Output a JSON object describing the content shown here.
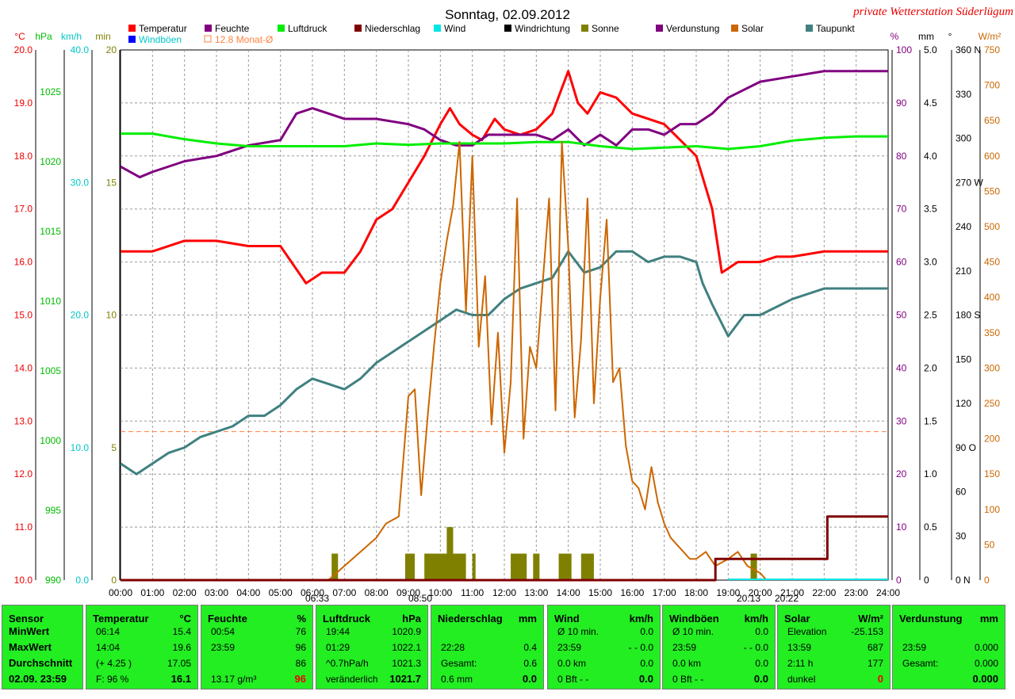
{
  "title": "Sonntag, 02.09.2012",
  "station": "private Wetterstation Süderlügum",
  "legend": [
    {
      "label": "Temperatur",
      "color": "#ff0000"
    },
    {
      "label": "Feuchte",
      "color": "#800080"
    },
    {
      "label": "Luftdruck",
      "color": "#00ee00"
    },
    {
      "label": "Niederschlag",
      "color": "#800000"
    },
    {
      "label": "Wind",
      "color": "#00e5e5"
    },
    {
      "label": "Windrichtung",
      "color": "#000000"
    },
    {
      "label": "Sonne",
      "color": "#808000"
    },
    {
      "label": "Verdunstung",
      "color": "#800080"
    },
    {
      "label": "Solar",
      "color": "#cc6600"
    },
    {
      "label": "Taupunkt",
      "color": "#408080"
    },
    {
      "label": "Windböen",
      "color": "#0000ff"
    },
    {
      "label": "12.8 Monat-Ø",
      "color": "#ff8040"
    }
  ],
  "axis_units": {
    "temp": "°C",
    "pressure": "hPa",
    "wind": "km/h",
    "sun": "min",
    "humidity": "%",
    "rain": "mm",
    "direction": "°",
    "solar": "W/m²"
  },
  "chart_data": {
    "type": "line",
    "x_ticks": [
      "00:00",
      "01:00",
      "02:00",
      "03:00",
      "04:00",
      "05:00",
      "06:00",
      "07:00",
      "08:00",
      "09:00",
      "10:00",
      "11:00",
      "12:00",
      "13:00",
      "14:00",
      "15:00",
      "16:00",
      "17:00",
      "18:00",
      "19:00",
      "20:00",
      "21:00",
      "22:00",
      "23:00",
      "24:00"
    ],
    "sun_markers": [
      "06:33",
      "08:50",
      "20:13",
      "20:22"
    ],
    "axes": {
      "temp": {
        "range": [
          10.0,
          20.0
        ],
        "ticks": [
          "10.0",
          "11.0",
          "12.0",
          "13.0",
          "14.0",
          "15.0",
          "16.0",
          "17.0",
          "18.0",
          "19.0",
          "20.0"
        ]
      },
      "pressure": {
        "range": [
          990,
          1028
        ],
        "ticks": [
          "990",
          "995",
          "1000",
          "1005",
          "1010",
          "1015",
          "1020",
          "1025"
        ]
      },
      "wind": {
        "range": [
          0.0,
          40.0
        ],
        "ticks": [
          "0.0",
          "10.0",
          "20.0",
          "30.0",
          "40.0"
        ]
      },
      "sun_min": {
        "range": [
          0,
          20
        ],
        "ticks": [
          "0",
          "5",
          "10",
          "15",
          "20"
        ]
      },
      "humidity": {
        "range": [
          0,
          100
        ],
        "ticks": [
          "0",
          "10",
          "20",
          "30",
          "40",
          "50",
          "60",
          "70",
          "80",
          "90",
          "100"
        ]
      },
      "rain": {
        "range": [
          0.0,
          5.0
        ],
        "ticks": [
          "0",
          "0.5",
          "1.0",
          "1.5",
          "2.0",
          "2.5",
          "3.0",
          "3.5",
          "4.0",
          "4.5",
          "5.0"
        ]
      },
      "direction": {
        "range": [
          0,
          360
        ],
        "ticks": [
          "0 N",
          "30",
          "60",
          "90 O",
          "120",
          "150",
          "180 S",
          "210",
          "240",
          "270 W",
          "300",
          "330",
          "360 N"
        ]
      },
      "solar": {
        "range": [
          0,
          750
        ],
        "ticks": [
          "0",
          "50",
          "100",
          "150",
          "200",
          "250",
          "300",
          "350",
          "400",
          "450",
          "500",
          "550",
          "600",
          "650",
          "700",
          "750"
        ]
      }
    },
    "series": [
      {
        "name": "Temperatur",
        "color": "#ff0000",
        "axis": "temp",
        "x": [
          0,
          1,
          2,
          3,
          4,
          5,
          5.8,
          6.3,
          7,
          7.5,
          8,
          8.5,
          9,
          9.5,
          10,
          10.3,
          10.6,
          11,
          11.3,
          11.7,
          12,
          12.5,
          13,
          13.5,
          14,
          14.3,
          14.6,
          15,
          15.5,
          16,
          16.5,
          17,
          17.5,
          18,
          18.5,
          18.8,
          19.3,
          20,
          20.5,
          21,
          22,
          23,
          24
        ],
        "y": [
          16.2,
          16.2,
          16.4,
          16.4,
          16.3,
          16.3,
          15.6,
          15.8,
          15.8,
          16.2,
          16.8,
          17.0,
          17.5,
          18.0,
          18.6,
          18.9,
          18.6,
          18.4,
          18.3,
          18.7,
          18.5,
          18.4,
          18.5,
          18.8,
          19.6,
          19.0,
          18.8,
          19.2,
          19.1,
          18.8,
          18.7,
          18.6,
          18.3,
          18.0,
          17.0,
          15.8,
          16.0,
          16.0,
          16.1,
          16.1,
          16.2,
          16.2,
          16.2
        ]
      },
      {
        "name": "Feuchte",
        "color": "#800080",
        "axis": "humidity",
        "x": [
          0,
          0.6,
          1,
          2,
          3,
          4,
          5,
          5.5,
          6,
          7,
          8,
          9,
          9.5,
          10,
          10.5,
          11,
          11.5,
          12,
          12.5,
          13,
          13.5,
          14,
          14.5,
          15,
          15.5,
          16,
          16.5,
          17,
          17.5,
          18,
          18.5,
          19,
          20,
          21,
          22,
          23,
          24
        ],
        "y": [
          78,
          76,
          77,
          79,
          80,
          82,
          83,
          88,
          89,
          87,
          87,
          86,
          85,
          83,
          82,
          82,
          84,
          84,
          84,
          84,
          83,
          85,
          82,
          84,
          82,
          85,
          85,
          84,
          86,
          86,
          88,
          91,
          94,
          95,
          96,
          96,
          96
        ]
      },
      {
        "name": "Luftdruck",
        "color": "#00ee00",
        "axis": "pressure",
        "x": [
          0,
          1,
          2,
          3,
          4,
          5,
          6,
          7,
          8,
          9,
          10,
          11,
          12,
          13,
          14,
          15,
          16,
          17,
          18,
          19,
          20,
          21,
          22,
          23,
          24
        ],
        "y": [
          1022.0,
          1022.0,
          1021.6,
          1021.3,
          1021.1,
          1021.1,
          1021.1,
          1021.1,
          1021.3,
          1021.2,
          1021.3,
          1021.3,
          1021.3,
          1021.4,
          1021.4,
          1021.1,
          1020.9,
          1021.0,
          1021.1,
          1020.9,
          1021.1,
          1021.5,
          1021.7,
          1021.8,
          1021.8
        ]
      },
      {
        "name": "Taupunkt",
        "color": "#408080",
        "axis": "temp",
        "x": [
          0,
          0.5,
          1,
          1.5,
          2,
          2.5,
          3,
          3.5,
          4,
          4.5,
          5,
          5.5,
          6,
          6.5,
          7,
          7.5,
          8,
          8.5,
          9,
          9.5,
          10,
          10.5,
          11,
          11.5,
          12,
          12.5,
          13,
          13.5,
          14,
          14.5,
          15,
          15.5,
          16,
          16.5,
          17,
          17.5,
          18,
          18.2,
          18.5,
          19,
          19.5,
          20,
          21,
          22,
          23,
          24
        ],
        "y": [
          12.2,
          12.0,
          12.2,
          12.4,
          12.5,
          12.7,
          12.8,
          12.9,
          13.1,
          13.1,
          13.3,
          13.6,
          13.8,
          13.7,
          13.6,
          13.8,
          14.1,
          14.3,
          14.5,
          14.7,
          14.9,
          15.1,
          15.0,
          15.0,
          15.3,
          15.5,
          15.6,
          15.7,
          16.2,
          15.8,
          15.9,
          16.2,
          16.2,
          16.0,
          16.1,
          16.1,
          16.0,
          15.6,
          15.2,
          14.6,
          15.0,
          15.0,
          15.3,
          15.5,
          15.5,
          15.5
        ]
      },
      {
        "name": "Solar",
        "color": "#cc6600",
        "axis": "solar",
        "x": [
          6.5,
          7,
          7.5,
          8,
          8.3,
          8.7,
          9,
          9.2,
          9.4,
          9.6,
          9.8,
          10,
          10.2,
          10.4,
          10.6,
          10.8,
          11,
          11.2,
          11.4,
          11.6,
          11.8,
          12,
          12.2,
          12.4,
          12.6,
          12.8,
          13,
          13.2,
          13.4,
          13.6,
          13.8,
          14,
          14.2,
          14.4,
          14.6,
          14.8,
          15,
          15.2,
          15.4,
          15.6,
          15.8,
          16,
          16.2,
          16.4,
          16.6,
          16.8,
          17,
          17.2,
          17.4,
          17.6,
          17.8,
          18,
          18.3,
          18.6,
          19,
          19.3,
          19.6,
          20,
          20.2
        ],
        "y": [
          0,
          20,
          40,
          60,
          80,
          90,
          260,
          270,
          120,
          230,
          330,
          420,
          480,
          530,
          620,
          380,
          600,
          330,
          430,
          220,
          350,
          180,
          280,
          540,
          200,
          330,
          300,
          420,
          540,
          240,
          620,
          470,
          230,
          340,
          540,
          250,
          400,
          510,
          280,
          300,
          190,
          140,
          130,
          100,
          160,
          110,
          80,
          60,
          50,
          40,
          30,
          30,
          40,
          20,
          30,
          40,
          20,
          10,
          0
        ]
      },
      {
        "name": "Niederschlag",
        "color": "#800000",
        "axis": "rain",
        "x": [
          0,
          18.6,
          18.6,
          22.1,
          22.1,
          24
        ],
        "y": [
          0,
          0,
          0.2,
          0.2,
          0.6,
          0.6
        ]
      }
    ],
    "sunshine": {
      "name": "Sonne",
      "color": "#808000",
      "axis": "sun_min",
      "intervals": [
        [
          6.6,
          6.8,
          1
        ],
        [
          8.9,
          9.2,
          1
        ],
        [
          9.5,
          10.8,
          1
        ],
        [
          10.2,
          10.4,
          2
        ],
        [
          11,
          11.1,
          1
        ],
        [
          12.2,
          12.7,
          1
        ],
        [
          12.9,
          13.1,
          1
        ],
        [
          13.7,
          14.1,
          1
        ],
        [
          14.4,
          14.8,
          1
        ],
        [
          19.7,
          19.9,
          1
        ]
      ]
    },
    "monthly_avg": {
      "label": "12.8 Monat-Ø",
      "value": 12.8,
      "color": "#ff8040"
    },
    "ylabel_left": "°C",
    "xlabel": ""
  },
  "panel": [
    {
      "header": "Sensor",
      "unit": "",
      "rows": [
        [
          "MinWert",
          ""
        ],
        [
          "MaxWert",
          ""
        ],
        [
          "Durchschnitt",
          ""
        ],
        [
          "02.09. 23:59",
          ""
        ]
      ]
    },
    {
      "header": "Temperatur",
      "unit": "°C",
      "rows": [
        [
          "06:14",
          "15.4"
        ],
        [
          "14:04",
          "19.6"
        ],
        [
          "(+ 4.25 )",
          "17.05"
        ],
        [
          "F: 96 %",
          "16.1"
        ]
      ]
    },
    {
      "header": "Feuchte",
      "unit": "%",
      "rows": [
        [
          "00:54",
          "76"
        ],
        [
          "23:59",
          "96"
        ],
        [
          "",
          "86"
        ],
        [
          "13.17 g/m³",
          "96"
        ]
      ]
    },
    {
      "header": "Luftdruck",
      "unit": "hPa",
      "rows": [
        [
          "19:44",
          "1020.9"
        ],
        [
          "01:29",
          "1022.1"
        ],
        [
          "^0.7hPa/h",
          "1021.3"
        ],
        [
          "veränderlich",
          "1021.7"
        ]
      ]
    },
    {
      "header": "Niederschlag",
      "unit": "mm",
      "rows": [
        [
          "",
          ""
        ],
        [
          "22:28",
          "0.4"
        ],
        [
          "Gesamt:",
          "0.6"
        ],
        [
          "0.6 mm",
          "0.0"
        ]
      ]
    },
    {
      "header": "Wind",
      "unit": "km/h",
      "rows": [
        [
          "Ø 10 min.",
          "0.0"
        ],
        [
          "23:59",
          "- - 0.0"
        ],
        [
          "0.0 km",
          "0.0"
        ],
        [
          "0 Bft - -",
          "0.0"
        ]
      ]
    },
    {
      "header": "Windböen",
      "unit": "km/h",
      "rows": [
        [
          "Ø 10 min.",
          "0.0"
        ],
        [
          "23:59",
          "- - 0.0"
        ],
        [
          "0.0 km",
          "0.0"
        ],
        [
          "0 Bft - -",
          "0.0"
        ]
      ]
    },
    {
      "header": "Solar",
      "unit": "W/m²",
      "rows": [
        [
          "Elevation",
          "-25.153"
        ],
        [
          "13:59",
          "687"
        ],
        [
          "2:11 h",
          "177"
        ],
        [
          "dunkel",
          "0"
        ]
      ]
    },
    {
      "header": "Verdunstung",
      "unit": "mm",
      "rows": [
        [
          "",
          ""
        ],
        [
          "23:59",
          "0.000"
        ],
        [
          "Gesamt:",
          "0.000"
        ],
        [
          "",
          "0.000"
        ]
      ]
    }
  ]
}
